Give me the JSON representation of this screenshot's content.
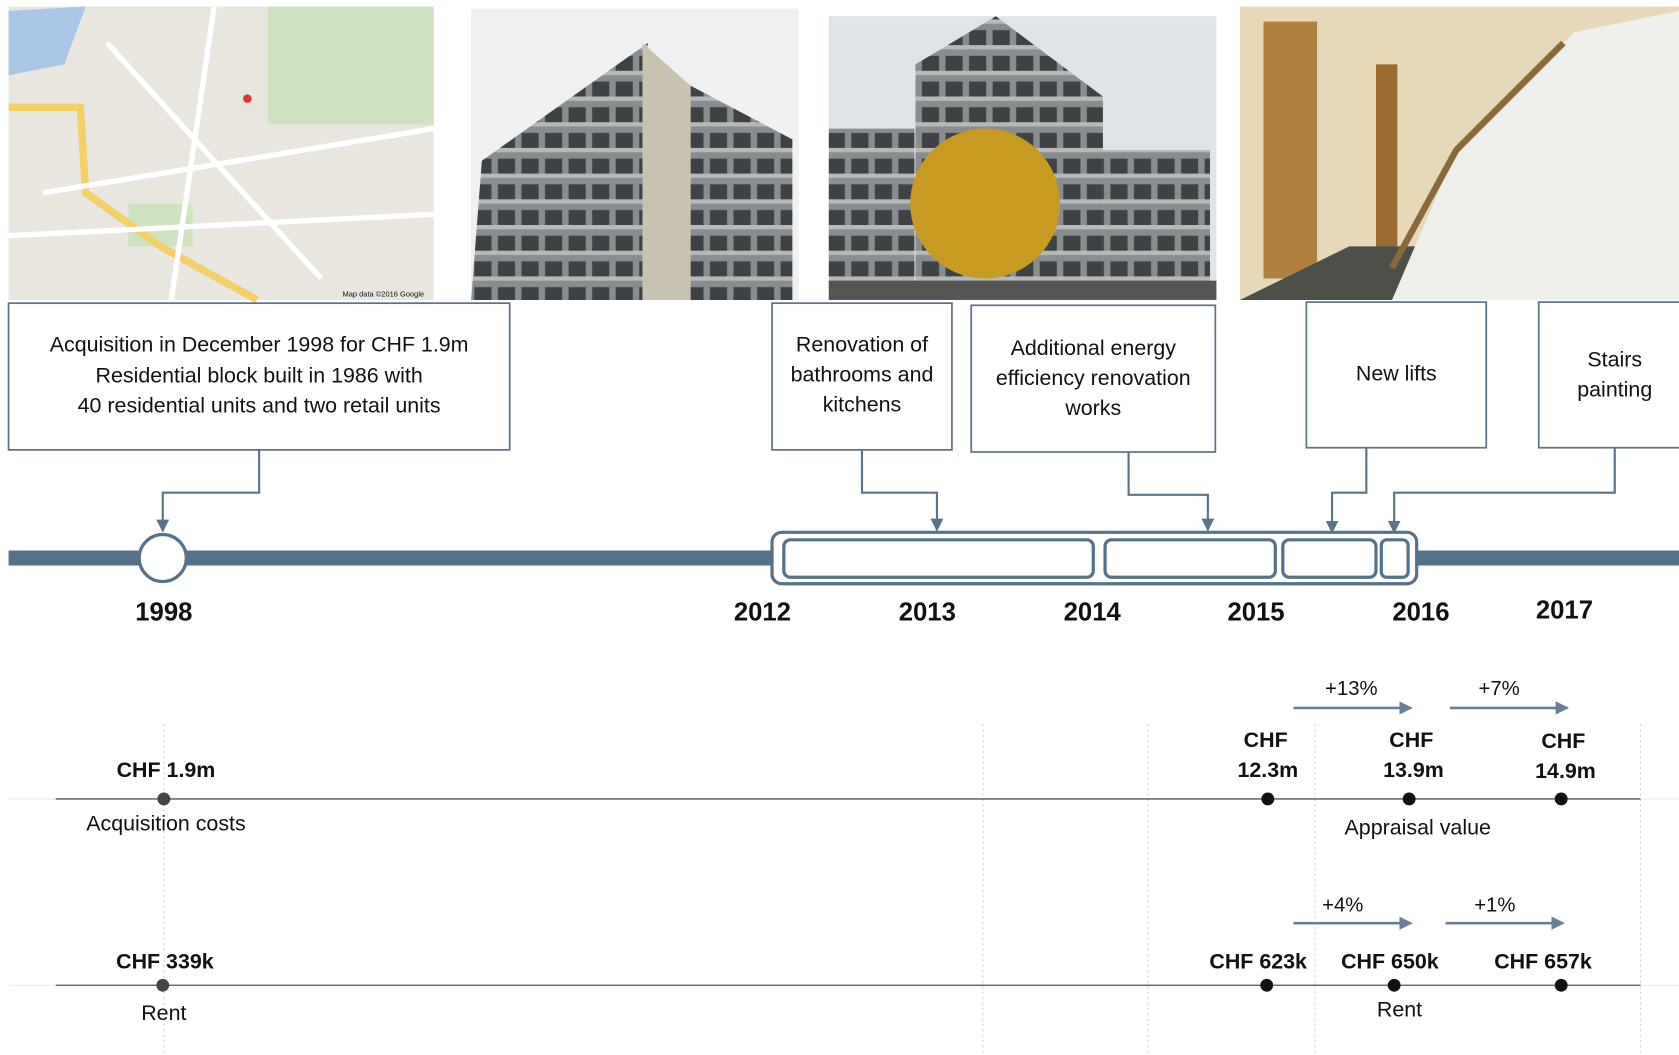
{
  "map_attribution": "Map data ©2016 Google",
  "milestones": [
    {
      "lines": [
        "Acquisition in December 1998 for CHF 1.9m",
        "Residential block built in 1986 with",
        "40 residential units and two retail units"
      ]
    },
    {
      "lines": [
        "Renovation of",
        "bathrooms and",
        "kitchens"
      ]
    },
    {
      "lines": [
        "Additional energy",
        "efficiency renovation",
        "works"
      ]
    },
    {
      "lines": [
        "New lifts"
      ]
    },
    {
      "lines": [
        "Stairs",
        "painting"
      ]
    }
  ],
  "years": [
    "1998",
    "2012",
    "2013",
    "2014",
    "2015",
    "2016",
    "2017"
  ],
  "appraisal": {
    "acquisition_value": "CHF 1.9m",
    "acquisition_label": "Acquisition costs",
    "label": "Appraisal value",
    "values": [
      {
        "lines": [
          "CHF",
          "12.3m"
        ]
      },
      {
        "lines": [
          "CHF",
          "13.9m"
        ]
      },
      {
        "lines": [
          "CHF",
          "14.9m"
        ]
      }
    ],
    "changes": [
      "+13%",
      "+7%"
    ]
  },
  "rent": {
    "acquisition_value": "CHF 339k",
    "acquisition_label": "Rent",
    "label": "Rent",
    "values": [
      "CHF 623k",
      "CHF 650k",
      "CHF 657k"
    ],
    "changes": [
      "+4%",
      "+1%"
    ]
  }
}
